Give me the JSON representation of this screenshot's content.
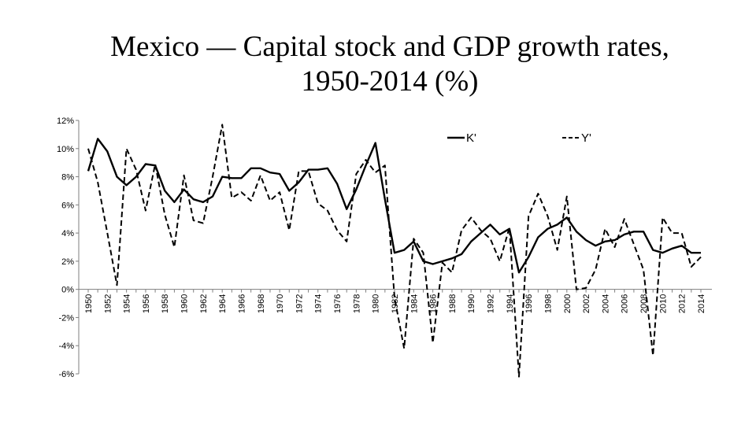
{
  "chart_data": {
    "type": "line",
    "title_lines": [
      "Mexico — Capital stock and GDP growth rates,",
      "1950-2014 (%)"
    ],
    "xlabel": "",
    "ylabel": "",
    "x": [
      1950,
      1951,
      1952,
      1953,
      1954,
      1955,
      1956,
      1957,
      1958,
      1959,
      1960,
      1961,
      1962,
      1963,
      1964,
      1965,
      1966,
      1967,
      1968,
      1969,
      1970,
      1971,
      1972,
      1973,
      1974,
      1975,
      1976,
      1977,
      1978,
      1979,
      1980,
      1981,
      1982,
      1983,
      1984,
      1985,
      1986,
      1987,
      1988,
      1989,
      1990,
      1991,
      1992,
      1993,
      1994,
      1995,
      1996,
      1997,
      1998,
      1999,
      2000,
      2001,
      2002,
      2003,
      2004,
      2005,
      2006,
      2007,
      2008,
      2009,
      2010,
      2011,
      2012,
      2013,
      2014
    ],
    "x_tick_labels": [
      "1950",
      "1952",
      "1954",
      "1956",
      "1958",
      "1960",
      "1962",
      "1964",
      "1966",
      "1968",
      "1970",
      "1972",
      "1974",
      "1976",
      "1978",
      "1980",
      "1982",
      "1984",
      "1986",
      "1988",
      "1990",
      "1992",
      "1994",
      "1996",
      "1998",
      "2000",
      "2002",
      "2004",
      "2006",
      "2008",
      "2010",
      "2012",
      "2014"
    ],
    "ylim": [
      -6,
      12
    ],
    "y_ticks": [
      -6,
      -4,
      -2,
      0,
      2,
      4,
      6,
      8,
      10,
      12
    ],
    "y_tick_labels": [
      "-6%",
      "-4%",
      "-2%",
      "0%",
      "2%",
      "4%",
      "6%",
      "8%",
      "10%",
      "12%"
    ],
    "grid": false,
    "legend_position": "top-right",
    "series": [
      {
        "name": "K'",
        "style": "solid",
        "color": "#000000",
        "values": [
          8.4,
          10.7,
          9.8,
          8.0,
          7.4,
          8.0,
          8.9,
          8.8,
          7.0,
          6.2,
          7.1,
          6.4,
          6.2,
          6.6,
          8.0,
          7.9,
          7.9,
          8.6,
          8.6,
          8.3,
          8.2,
          7.0,
          7.6,
          8.5,
          8.5,
          8.6,
          7.5,
          5.7,
          7.1,
          8.8,
          10.4,
          6.4,
          2.6,
          2.8,
          3.4,
          2.0,
          1.8,
          2.0,
          2.2,
          2.5,
          3.4,
          4.0,
          4.6,
          3.9,
          4.3,
          1.2,
          2.3,
          3.7,
          4.3,
          4.6,
          5.1,
          4.1,
          3.5,
          3.1,
          3.4,
          3.5,
          3.9,
          4.1,
          4.1,
          2.8,
          2.6,
          2.9,
          3.1,
          2.6,
          2.6
        ]
      },
      {
        "name": "Y'",
        "style": "dashed",
        "color": "#000000",
        "values": [
          10.0,
          7.6,
          4.0,
          0.3,
          10.0,
          8.5,
          5.6,
          8.9,
          5.3,
          3.0,
          8.1,
          4.9,
          4.7,
          8.0,
          11.7,
          6.5,
          6.9,
          6.3,
          8.1,
          6.3,
          6.9,
          4.2,
          8.4,
          8.4,
          6.1,
          5.6,
          4.2,
          3.4,
          8.2,
          9.2,
          8.3,
          8.8,
          -0.6,
          -4.2,
          3.6,
          2.6,
          -3.8,
          1.9,
          1.2,
          4.2,
          5.1,
          4.2,
          3.6,
          2.0,
          4.4,
          -6.2,
          5.2,
          6.8,
          5.2,
          2.8,
          6.6,
          0.0,
          0.1,
          1.4,
          4.3,
          3.0,
          5.0,
          3.2,
          1.4,
          -4.7,
          5.1,
          4.0,
          4.0,
          1.6,
          2.3
        ]
      }
    ]
  }
}
